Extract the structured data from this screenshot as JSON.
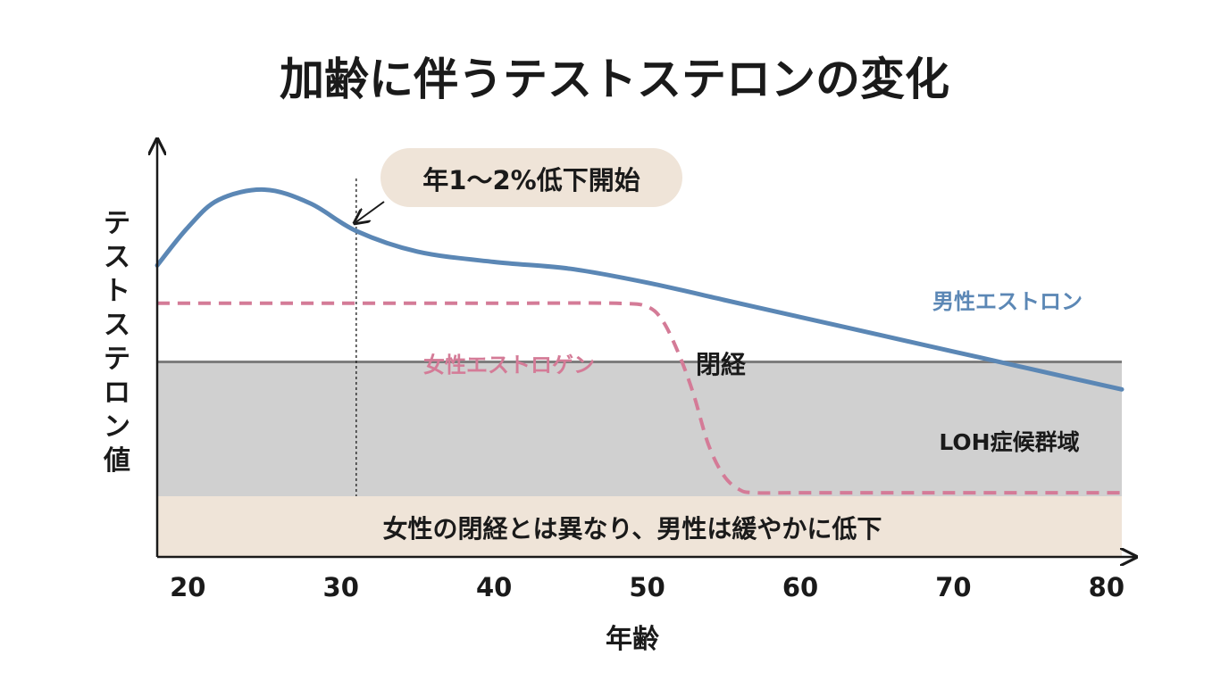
{
  "chart_data": {
    "type": "line",
    "title": "加齢に伴うテストステロンの変化",
    "xlabel": "年齢",
    "ylabel": "テストステロン値",
    "xlim": [
      18,
      81
    ],
    "ylim": [
      0,
      100
    ],
    "x_ticks": [
      20,
      30,
      40,
      50,
      60,
      70,
      80
    ],
    "grid": false,
    "series": [
      {
        "name": "男性エストロン",
        "color": "#5b87b5",
        "style": "solid",
        "points": [
          [
            18,
            67
          ],
          [
            20,
            78
          ],
          [
            22,
            86
          ],
          [
            25,
            89
          ],
          [
            28,
            85
          ],
          [
            31,
            77
          ],
          [
            35,
            71
          ],
          [
            40,
            68
          ],
          [
            45,
            66
          ],
          [
            50,
            62
          ],
          [
            55,
            57
          ],
          [
            60,
            52
          ],
          [
            65,
            47
          ],
          [
            70,
            42
          ],
          [
            75,
            37
          ],
          [
            81,
            31
          ]
        ]
      },
      {
        "name": "女性エストロゲン",
        "color": "#d47b97",
        "style": "dashed",
        "points": [
          [
            18,
            56
          ],
          [
            30,
            56
          ],
          [
            40,
            56
          ],
          [
            48,
            56
          ],
          [
            50,
            55
          ],
          [
            51,
            51
          ],
          [
            52,
            42
          ],
          [
            53,
            30
          ],
          [
            54,
            15
          ],
          [
            55,
            6
          ],
          [
            56,
            2
          ],
          [
            57,
            1
          ],
          [
            60,
            1
          ],
          [
            70,
            1
          ],
          [
            81,
            1
          ]
        ]
      }
    ],
    "bands": [
      {
        "label": "LOH症候群域",
        "from": 0,
        "to": 39,
        "color": "#d0d0d0"
      }
    ],
    "annotations": {
      "callout": "年1〜2%低下開始",
      "callout_x": 31,
      "menopause": "閉経",
      "note": "女性の閉経とは異なり、男性は緩やかに低下"
    },
    "colors": {
      "axis": "#1a1a1a",
      "band_edge": "#7d7d7d",
      "note_bg": "#efe4d8",
      "callout_bg": "#efe4d8",
      "text": "#1a1a1a"
    }
  }
}
